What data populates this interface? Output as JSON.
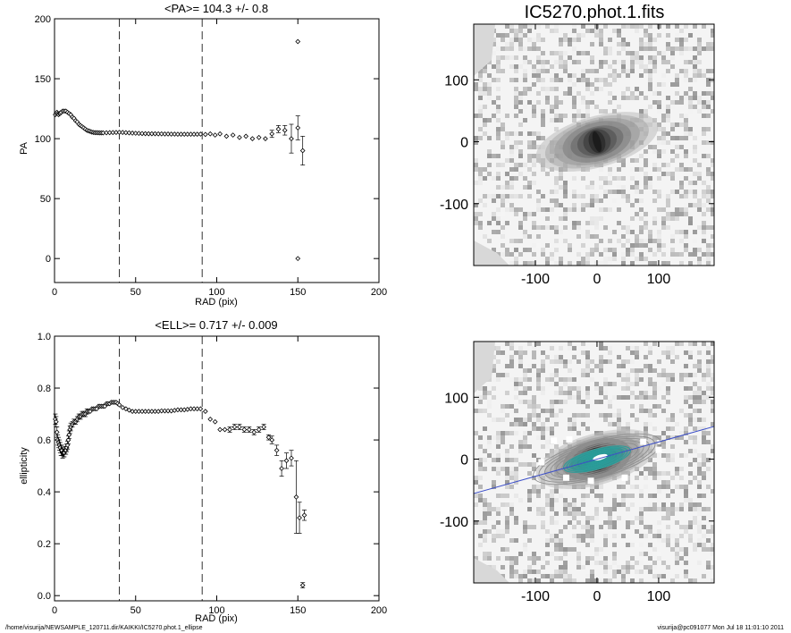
{
  "footer": {
    "path": "/home/visurija/NEWSAMPLE_120711.dir/KAIKKI/IC5270.phot.1_ellipse",
    "stamp": "visurija@pc091077  Mon Jul 18 11:01:10 2011"
  },
  "chart_data": [
    {
      "type": "scatter",
      "title": "<PA>= 104.3 +/-   0.8",
      "xlabel": "RAD (pix)",
      "ylabel": "PA",
      "xlim": [
        0,
        200
      ],
      "ylim": [
        -20,
        200
      ],
      "xticks": [
        0,
        50,
        100,
        150,
        200
      ],
      "yticks": [
        0,
        50,
        100,
        150,
        200
      ],
      "vlines": [
        40,
        91
      ],
      "series": [
        {
          "x": [
            0.5,
            1,
            1.5,
            2,
            2.5,
            3,
            3.5,
            4,
            5,
            6,
            7,
            8,
            9,
            10,
            11,
            12,
            13,
            14,
            15,
            16,
            17,
            18,
            19,
            20,
            21,
            22,
            23,
            24,
            25,
            26,
            27,
            28,
            29,
            30,
            32,
            34,
            36,
            38,
            40,
            42,
            44,
            46,
            48,
            50,
            52,
            54,
            56,
            58,
            60,
            62,
            64,
            66,
            68,
            70,
            72,
            74,
            76,
            78,
            80,
            82,
            84,
            86,
            88,
            90,
            93,
            96,
            99,
            102,
            106,
            110,
            114,
            118,
            122,
            126,
            130,
            134,
            138,
            142,
            146,
            150,
            153
          ],
          "y": [
            120,
            121,
            122,
            121,
            120,
            121,
            121,
            122,
            123,
            123,
            123,
            122,
            121,
            120,
            118,
            117,
            115,
            114,
            112,
            111,
            110,
            109,
            108,
            107,
            106.5,
            106,
            105.5,
            105.2,
            105,
            105,
            104.9,
            104.8,
            104.8,
            104.8,
            104.9,
            105,
            105.1,
            105.2,
            105.3,
            105.2,
            105,
            104.8,
            104.6,
            104.5,
            104.4,
            104.3,
            104.2,
            104.1,
            104.1,
            104.1,
            104.0,
            104.0,
            103.9,
            103.9,
            103.8,
            103.8,
            103.7,
            103.7,
            103.7,
            103.7,
            103.7,
            103.7,
            103.7,
            103.8,
            103.5,
            104,
            103,
            104,
            102,
            103,
            101,
            102,
            100,
            101,
            100,
            104,
            108,
            107,
            100,
            109,
            90
          ],
          "err": [
            1.5,
            1.5,
            1.5,
            1.5,
            1.5,
            1.5,
            1.5,
            1.5,
            1,
            1,
            1,
            1,
            1,
            1,
            1,
            1,
            1,
            1,
            1,
            1,
            1,
            1,
            1,
            1,
            1,
            1,
            1,
            1,
            1,
            1,
            1,
            1,
            1,
            1,
            1,
            1,
            1,
            1,
            1,
            1,
            1,
            1,
            1,
            1,
            1,
            1,
            1,
            1,
            1,
            1,
            1,
            1,
            1,
            1,
            1,
            1,
            1,
            1,
            1,
            1,
            1,
            1,
            1,
            1,
            1,
            1,
            1,
            1,
            1,
            1,
            1,
            1,
            1,
            1,
            1.5,
            3,
            3,
            4,
            12,
            10,
            12
          ]
        },
        {
          "x": [
            150,
            150
          ],
          "y": [
            181,
            0
          ],
          "err": [
            0,
            0
          ]
        }
      ]
    },
    {
      "type": "scatter",
      "title": "<ELL>= 0.717 +/-  0.009",
      "xlabel": "RAD (pix)",
      "ylabel": "ellipticity",
      "xlim": [
        0,
        200
      ],
      "ylim": [
        -0.02,
        1.0
      ],
      "xticks": [
        0,
        50,
        100,
        150,
        200
      ],
      "yticks": [
        0.0,
        0.2,
        0.4,
        0.6,
        0.8,
        1.0
      ],
      "ytick_labels": [
        "0.0",
        "0.2",
        "0.4",
        "0.6",
        "0.8",
        "1.0"
      ],
      "vlines": [
        40,
        91
      ],
      "series": [
        {
          "x": [
            0.5,
            1,
            1.5,
            2,
            2.5,
            3,
            3.5,
            4,
            4.5,
            5,
            5.5,
            6,
            6.5,
            7,
            7.5,
            8,
            8.5,
            9,
            9.5,
            10,
            11,
            12,
            13,
            14,
            15,
            16,
            17,
            18,
            19,
            20,
            21,
            22,
            23,
            24,
            25,
            26,
            27,
            28,
            29,
            30,
            31,
            32,
            33,
            34,
            35,
            36,
            37,
            38,
            39,
            40,
            42,
            44,
            46,
            48,
            50,
            52,
            54,
            56,
            58,
            60,
            62,
            64,
            66,
            68,
            70,
            72,
            74,
            76,
            78,
            80,
            82,
            84,
            86,
            88,
            90,
            93,
            96,
            99,
            102,
            105,
            108,
            111,
            114,
            117,
            120,
            123,
            126,
            129,
            132,
            134,
            137,
            140,
            143,
            146,
            149,
            151,
            154
          ],
          "y": [
            0.68,
            0.67,
            0.63,
            0.6,
            0.59,
            0.58,
            0.57,
            0.56,
            0.56,
            0.55,
            0.55,
            0.55,
            0.56,
            0.56,
            0.57,
            0.58,
            0.6,
            0.62,
            0.64,
            0.65,
            0.66,
            0.67,
            0.67,
            0.68,
            0.69,
            0.69,
            0.7,
            0.7,
            0.7,
            0.71,
            0.71,
            0.71,
            0.72,
            0.72,
            0.72,
            0.72,
            0.73,
            0.73,
            0.73,
            0.73,
            0.73,
            0.74,
            0.74,
            0.74,
            0.745,
            0.745,
            0.745,
            0.745,
            0.74,
            0.735,
            0.725,
            0.72,
            0.715,
            0.71,
            0.71,
            0.71,
            0.71,
            0.71,
            0.71,
            0.71,
            0.71,
            0.71,
            0.712,
            0.712,
            0.712,
            0.712,
            0.714,
            0.716,
            0.716,
            0.716,
            0.718,
            0.72,
            0.72,
            0.72,
            0.72,
            0.71,
            0.68,
            0.67,
            0.64,
            0.64,
            0.64,
            0.65,
            0.65,
            0.64,
            0.64,
            0.63,
            0.64,
            0.65,
            0.61,
            0.6,
            0.56,
            0.49,
            0.52,
            0.53,
            0.38,
            0.3,
            0.31
          ],
          "err": [
            0.02,
            0.02,
            0.02,
            0.02,
            0.02,
            0.02,
            0.02,
            0.02,
            0.02,
            0.02,
            0.015,
            0.015,
            0.015,
            0.015,
            0.015,
            0.015,
            0.015,
            0.015,
            0.015,
            0.015,
            0.01,
            0.01,
            0.01,
            0.01,
            0.01,
            0.01,
            0.01,
            0.01,
            0.01,
            0.01,
            0.005,
            0.005,
            0.005,
            0.005,
            0.005,
            0.005,
            0.005,
            0.005,
            0.005,
            0.005,
            0.005,
            0.005,
            0.005,
            0.005,
            0.005,
            0.005,
            0.005,
            0.005,
            0.005,
            0.005,
            0.005,
            0.005,
            0.005,
            0.005,
            0.005,
            0.005,
            0.005,
            0.005,
            0.005,
            0.005,
            0.005,
            0.005,
            0.005,
            0.005,
            0.005,
            0.005,
            0.005,
            0.005,
            0.005,
            0.005,
            0.005,
            0.005,
            0.005,
            0.005,
            0.005,
            0.005,
            0.005,
            0.005,
            0.005,
            0.005,
            0.01,
            0.01,
            0.01,
            0.01,
            0.01,
            0.01,
            0.01,
            0.01,
            0.01,
            0.015,
            0.02,
            0.03,
            0.03,
            0.03,
            0.14,
            0.06,
            0.02
          ]
        },
        {
          "x": [
            153
          ],
          "y": [
            0.04
          ],
          "err": [
            0.01
          ]
        }
      ]
    },
    {
      "type": "heatmap",
      "title": "IC5270.phot.1.fits",
      "xlim": [
        -200,
        190
      ],
      "ylim": [
        -200,
        190
      ],
      "xticks": [
        -100,
        0,
        100
      ],
      "yticks": [
        -100,
        0,
        100
      ],
      "galaxy": {
        "pa_deg": 104.3,
        "ellipticity": 0.717,
        "semi_major": 150,
        "center": [
          0,
          0
        ]
      }
    },
    {
      "type": "heatmap",
      "xlim": [
        -200,
        190
      ],
      "ylim": [
        -200,
        190
      ],
      "xticks": [
        -100,
        0,
        100
      ],
      "yticks": [
        -100,
        0,
        100
      ],
      "overlays": {
        "contour_color": "#2a9d9a",
        "outer_contour_color": "#8c8c8c",
        "major_axis_color": "#3c4fc8"
      },
      "galaxy": {
        "pa_deg": 104.3,
        "ellipticity": 0.717,
        "semi_major": 150,
        "center": [
          0,
          0
        ]
      }
    }
  ]
}
